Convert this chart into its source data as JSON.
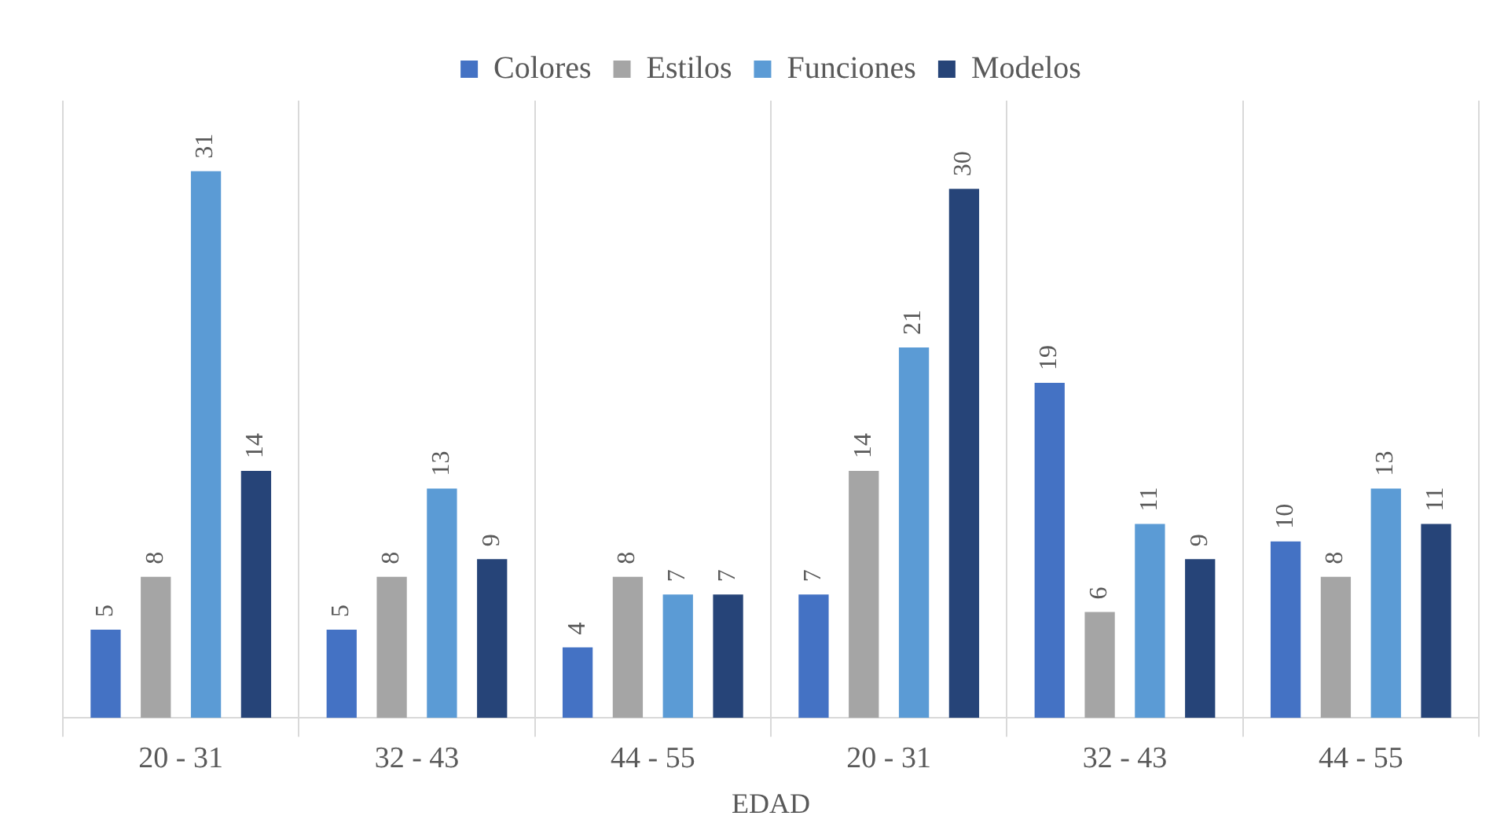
{
  "chart_data": {
    "type": "bar",
    "xlabel": "EDAD",
    "categories": [
      "20 - 31",
      "32 - 43",
      "44 - 55",
      "20 - 31",
      "32 - 43",
      "44 - 55"
    ],
    "series": [
      {
        "name": "Colores",
        "color": "#4472c4",
        "values": [
          5,
          5,
          4,
          7,
          19,
          10
        ]
      },
      {
        "name": "Estilos",
        "color": "#a5a5a5",
        "values": [
          8,
          8,
          8,
          14,
          6,
          8
        ]
      },
      {
        "name": "Funciones",
        "color": "#5b9bd5",
        "values": [
          31,
          13,
          7,
          21,
          11,
          13
        ]
      },
      {
        "name": "Modelos",
        "color": "#264478",
        "values": [
          14,
          9,
          7,
          30,
          9,
          11
        ]
      }
    ],
    "data_labels": true,
    "grid": "x",
    "legend": "top",
    "tick_labels": "x"
  }
}
